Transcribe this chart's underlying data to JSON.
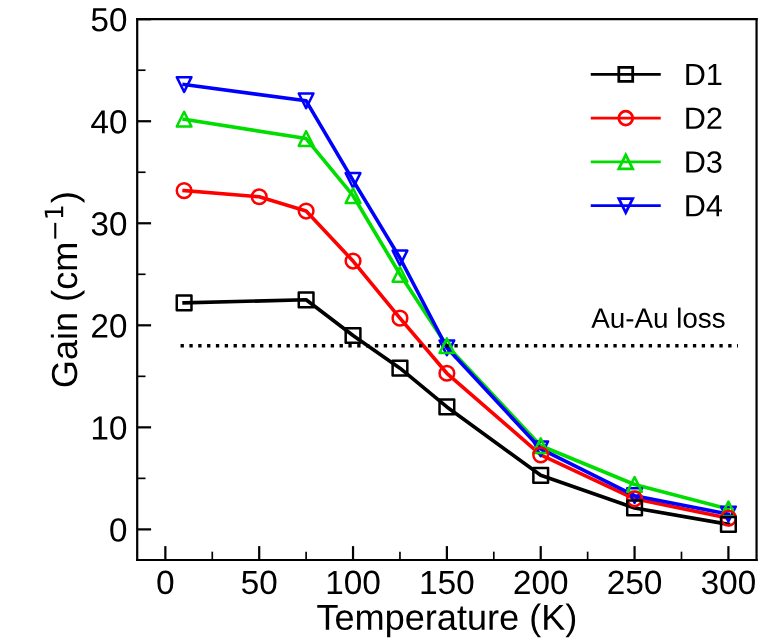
{
  "chart_data": {
    "type": "line",
    "xlabel": "Temperature (K)",
    "ylabel": "Gain (cm$^{−1}$)",
    "xlim": [
      -15,
      315
    ],
    "ylim": [
      -3,
      50
    ],
    "xticks": [
      0,
      50,
      100,
      150,
      200,
      250,
      300
    ],
    "yticks": [
      0,
      10,
      20,
      30,
      40,
      50
    ],
    "grid": false,
    "legend": "top right",
    "line_style": "solid",
    "series": [
      {
        "name": "D1",
        "color": "#000000",
        "marker": "square",
        "x": [
          10,
          75,
          100,
          125,
          150,
          200,
          250,
          300
        ],
        "values": [
          22.2,
          22.5,
          19,
          15.8,
          12,
          5.3,
          2.1,
          0.5
        ]
      },
      {
        "name": "D2",
        "color": "#ff0000",
        "marker": "circle",
        "x": [
          10,
          50,
          75,
          100,
          125,
          150,
          200,
          250,
          300
        ],
        "values": [
          33.2,
          32.6,
          31.2,
          26.3,
          20.7,
          15.3,
          7.3,
          3,
          1.1
        ]
      },
      {
        "name": "D3",
        "color": "#00dd00",
        "marker": "triangle",
        "x": [
          10,
          75,
          100,
          125,
          150,
          200,
          250,
          300
        ],
        "values": [
          40.2,
          38.3,
          32.7,
          25,
          18,
          8.2,
          4.4,
          2
        ]
      },
      {
        "name": "D4",
        "color": "#0000ff",
        "marker": "triangle_down",
        "x": [
          10,
          75,
          100,
          125,
          150,
          200,
          250,
          300
        ],
        "values": [
          43.6,
          42,
          34.2,
          26.6,
          17.8,
          7.9,
          3.3,
          1.5
        ]
      }
    ],
    "ref_lines": [
      {
        "axis": "y",
        "value": 18,
        "label": "Au-Au loss",
        "line_style": "dotted",
        "color": "#000000"
      }
    ]
  }
}
